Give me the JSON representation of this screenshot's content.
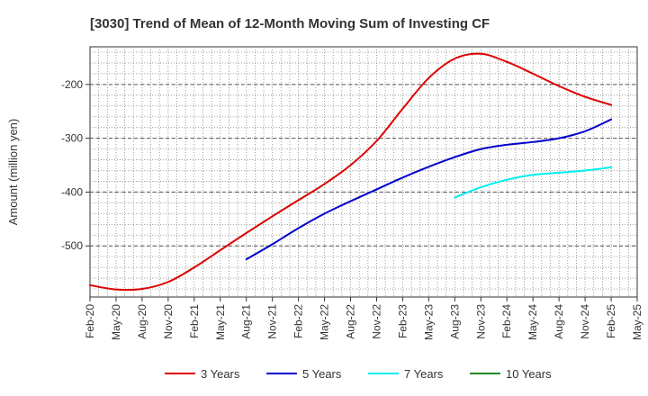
{
  "chart_data": {
    "type": "line",
    "title": "[3030]  Trend of Mean of 12-Month Moving Sum of Investing CF",
    "xlabel": "",
    "ylabel": "Amount (million yen)",
    "ylim": [
      -595,
      -130
    ],
    "yticks": [
      -200,
      -300,
      -400,
      -500
    ],
    "ytick_labels": [
      "-200",
      "-300",
      "-400",
      "-500"
    ],
    "x_tick_labels": [
      "Feb-20",
      "May-20",
      "Aug-20",
      "Nov-20",
      "Feb-21",
      "May-21",
      "Aug-21",
      "Nov-21",
      "Feb-22",
      "May-22",
      "Aug-22",
      "Nov-22",
      "Feb-23",
      "May-23",
      "Aug-23",
      "Nov-23",
      "Feb-24",
      "May-24",
      "Aug-24",
      "Nov-24",
      "Feb-25",
      "May-25"
    ],
    "x_range_months": [
      0,
      63
    ],
    "grid": true,
    "legend_position": "bottom",
    "series": [
      {
        "name": "3 Years",
        "color": "#dd0000",
        "x": [
          0,
          3,
          6,
          9,
          12,
          15,
          18,
          21,
          24,
          27,
          30,
          33,
          36,
          39,
          42,
          45,
          48,
          51,
          54,
          57,
          60
        ],
        "values": [
          -573,
          -581,
          -580,
          -567,
          -540,
          -508,
          -476,
          -445,
          -415,
          -385,
          -350,
          -305,
          -245,
          -188,
          -152,
          -143,
          -158,
          -180,
          -203,
          -223,
          -238
        ]
      },
      {
        "name": "5 Years",
        "color": "#0000cc",
        "x": [
          18,
          21,
          24,
          27,
          30,
          33,
          36,
          39,
          42,
          45,
          48,
          51,
          54,
          57,
          60
        ],
        "values": [
          -525,
          -497,
          -467,
          -440,
          -417,
          -395,
          -373,
          -353,
          -335,
          -320,
          -312,
          -307,
          -300,
          -287,
          -265
        ]
      },
      {
        "name": "7 Years",
        "color": "#00eeee",
        "x": [
          42,
          45,
          48,
          51,
          54,
          57,
          60
        ],
        "values": [
          -410,
          -391,
          -377,
          -368,
          -364,
          -360,
          -354
        ]
      },
      {
        "name": "10 Years",
        "color": "#228822",
        "x": [],
        "values": []
      }
    ]
  }
}
